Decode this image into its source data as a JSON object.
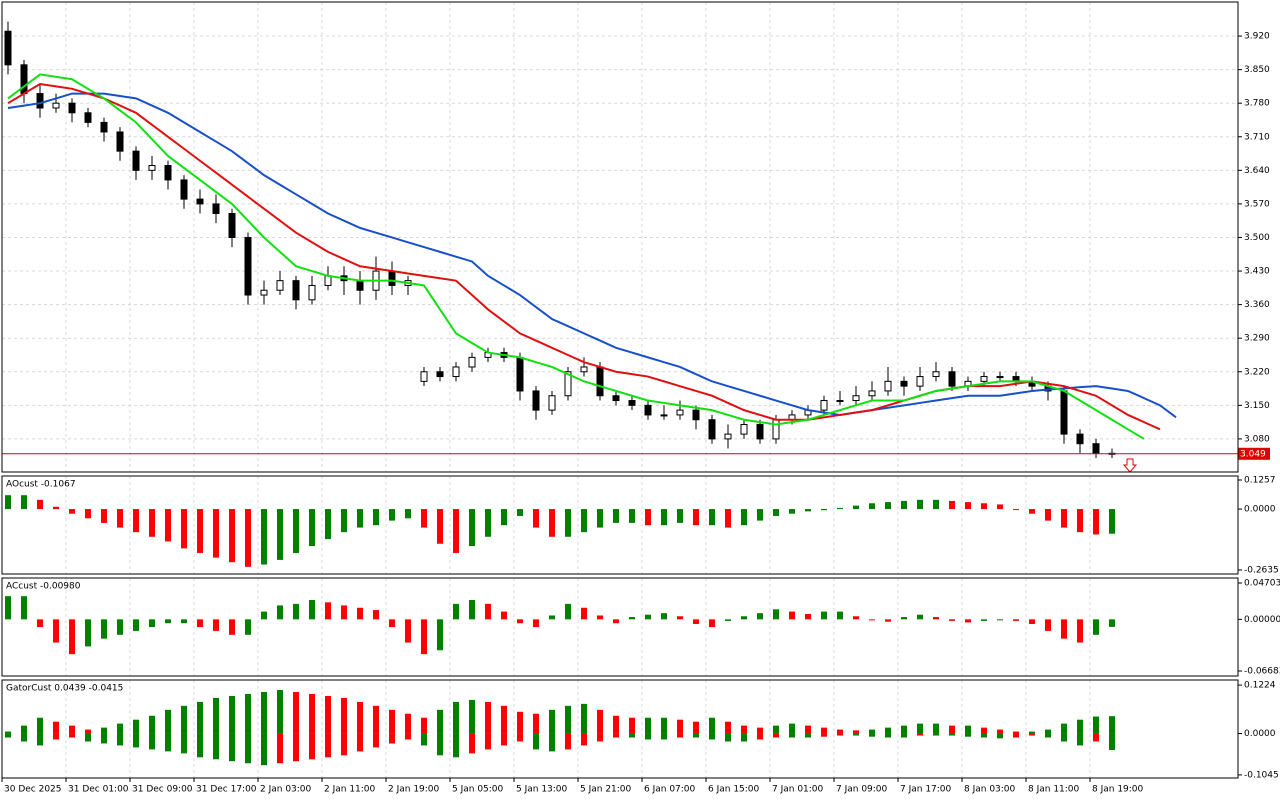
{
  "chart_data": [
    {
      "type": "candlestick",
      "grid": true,
      "up_color": "#ffffff",
      "down_color": "#000000",
      "bid": 3.049,
      "bid_color": "#e00000",
      "open": [
        3.93,
        3.86,
        3.8,
        3.77,
        3.78,
        3.76,
        3.74,
        3.72,
        3.68,
        3.64,
        3.65,
        3.62,
        3.58,
        3.57,
        3.55,
        3.5,
        3.38,
        3.39,
        3.41,
        3.37,
        3.4,
        3.42,
        3.41,
        3.39,
        3.43,
        3.4,
        3.2,
        3.22,
        3.21,
        3.23,
        3.25,
        3.26,
        3.25,
        3.18,
        3.14,
        3.17,
        3.22,
        3.23,
        3.17,
        3.16,
        3.15,
        3.13,
        3.13,
        3.14,
        3.12,
        3.08,
        3.09,
        3.11,
        3.08,
        3.12,
        3.13,
        3.14,
        3.16,
        3.16,
        3.17,
        3.18,
        3.2,
        3.19,
        3.21,
        3.22,
        3.19,
        3.2,
        3.21,
        3.21,
        3.2,
        3.19,
        3.18,
        3.09,
        3.07,
        3.05
      ],
      "high": [
        3.95,
        3.87,
        3.82,
        3.8,
        3.79,
        3.77,
        3.75,
        3.73,
        3.69,
        3.67,
        3.66,
        3.63,
        3.6,
        3.59,
        3.56,
        3.51,
        3.41,
        3.43,
        3.42,
        3.42,
        3.44,
        3.44,
        3.43,
        3.46,
        3.45,
        3.42,
        3.23,
        3.23,
        3.24,
        3.26,
        3.27,
        3.27,
        3.26,
        3.19,
        3.18,
        3.23,
        3.25,
        3.24,
        3.18,
        3.17,
        3.16,
        3.15,
        3.16,
        3.15,
        3.13,
        3.11,
        3.12,
        3.12,
        3.13,
        3.14,
        3.15,
        3.17,
        3.18,
        3.19,
        3.2,
        3.23,
        3.21,
        3.23,
        3.24,
        3.23,
        3.21,
        3.22,
        3.22,
        3.22,
        3.21,
        3.2,
        3.19,
        3.1,
        3.08,
        3.06
      ],
      "low": [
        3.84,
        3.78,
        3.75,
        3.76,
        3.74,
        3.73,
        3.7,
        3.66,
        3.62,
        3.62,
        3.6,
        3.56,
        3.55,
        3.53,
        3.48,
        3.36,
        3.36,
        3.38,
        3.35,
        3.36,
        3.39,
        3.38,
        3.36,
        3.37,
        3.38,
        3.38,
        3.19,
        3.2,
        3.2,
        3.22,
        3.24,
        3.24,
        3.16,
        3.12,
        3.13,
        3.16,
        3.21,
        3.16,
        3.15,
        3.14,
        3.12,
        3.12,
        3.12,
        3.1,
        3.07,
        3.06,
        3.08,
        3.07,
        3.07,
        3.11,
        3.12,
        3.13,
        3.15,
        3.15,
        3.16,
        3.17,
        3.17,
        3.18,
        3.2,
        3.18,
        3.18,
        3.19,
        3.2,
        3.19,
        3.18,
        3.16,
        3.07,
        3.05,
        3.04,
        3.04
      ],
      "close": [
        3.86,
        3.8,
        3.77,
        3.78,
        3.76,
        3.74,
        3.72,
        3.68,
        3.64,
        3.65,
        3.62,
        3.58,
        3.57,
        3.55,
        3.5,
        3.38,
        3.39,
        3.41,
        3.37,
        3.4,
        3.42,
        3.41,
        3.39,
        3.43,
        3.4,
        3.41,
        3.22,
        3.21,
        3.23,
        3.25,
        3.26,
        3.25,
        3.18,
        3.14,
        3.17,
        3.22,
        3.23,
        3.17,
        3.16,
        3.15,
        3.13,
        3.13,
        3.14,
        3.12,
        3.08,
        3.09,
        3.11,
        3.08,
        3.12,
        3.13,
        3.14,
        3.16,
        3.16,
        3.17,
        3.18,
        3.2,
        3.19,
        3.21,
        3.22,
        3.19,
        3.2,
        3.21,
        3.21,
        3.2,
        3.19,
        3.18,
        3.09,
        3.07,
        3.05,
        3.049
      ],
      "series": [
        {
          "color": "#1750c8",
          "values": [
            3.77,
            3.775,
            3.78,
            3.79,
            3.8,
            3.8,
            3.8,
            3.795,
            3.79,
            3.775,
            3.76,
            3.74,
            3.72,
            3.7,
            3.68,
            3.655,
            3.63,
            3.61,
            3.59,
            3.57,
            3.55,
            3.535,
            3.52,
            3.51,
            3.5,
            3.49,
            3.48,
            3.47,
            3.46,
            3.45,
            3.42,
            3.4,
            3.38,
            3.355,
            3.33,
            3.315,
            3.3,
            3.285,
            3.27,
            3.26,
            3.25,
            3.24,
            3.23,
            3.215,
            3.2,
            3.19,
            3.18,
            3.17,
            3.16,
            3.15,
            3.14,
            3.135,
            3.13,
            3.135,
            3.14,
            3.145,
            3.15,
            3.155,
            3.16,
            3.165,
            3.17,
            3.17,
            3.17,
            3.175,
            3.18,
            3.183,
            3.185,
            3.188,
            3.19,
            3.185,
            3.18,
            3.165,
            3.15,
            3.125
          ]
        },
        {
          "color": "#e01010",
          "values": [
            3.78,
            3.8,
            3.82,
            3.815,
            3.81,
            3.8,
            3.79,
            3.775,
            3.76,
            3.735,
            3.71,
            3.685,
            3.66,
            3.635,
            3.61,
            3.585,
            3.56,
            3.535,
            3.51,
            3.49,
            3.47,
            3.455,
            3.44,
            3.435,
            3.43,
            3.425,
            3.42,
            3.415,
            3.41,
            3.38,
            3.35,
            3.325,
            3.3,
            3.285,
            3.27,
            3.255,
            3.24,
            3.23,
            3.22,
            3.215,
            3.21,
            3.2,
            3.19,
            3.18,
            3.17,
            3.155,
            3.14,
            3.13,
            3.12,
            3.12,
            3.12,
            3.125,
            3.13,
            3.135,
            3.14,
            3.15,
            3.16,
            3.17,
            3.18,
            3.185,
            3.19,
            3.19,
            3.19,
            3.195,
            3.2,
            3.195,
            3.19,
            3.18,
            3.17,
            3.15,
            3.13,
            3.115,
            3.1
          ]
        },
        {
          "color": "#10e010",
          "values": [
            3.79,
            3.815,
            3.84,
            3.835,
            3.83,
            3.81,
            3.79,
            3.765,
            3.74,
            3.705,
            3.67,
            3.645,
            3.62,
            3.595,
            3.57,
            3.535,
            3.5,
            3.47,
            3.44,
            3.43,
            3.42,
            3.415,
            3.41,
            3.41,
            3.41,
            3.405,
            3.4,
            3.35,
            3.3,
            3.28,
            3.26,
            3.255,
            3.25,
            3.24,
            3.23,
            3.215,
            3.2,
            3.19,
            3.18,
            3.17,
            3.16,
            3.155,
            3.15,
            3.145,
            3.14,
            3.13,
            3.12,
            3.115,
            3.11,
            3.115,
            3.12,
            3.13,
            3.14,
            3.15,
            3.16,
            3.16,
            3.16,
            3.17,
            3.18,
            3.185,
            3.19,
            3.195,
            3.2,
            3.2,
            3.2,
            3.19,
            3.18,
            3.16,
            3.14,
            3.12,
            3.1,
            3.08
          ]
        }
      ],
      "ylim": [
        3.011,
        3.991
      ],
      "yticks": [
        {
          "value": 3.92,
          "label": "3.920"
        },
        {
          "value": 3.85,
          "label": "3.850"
        },
        {
          "value": 3.78,
          "label": "3.780"
        },
        {
          "value": 3.71,
          "label": "3.710"
        },
        {
          "value": 3.64,
          "label": "3.640"
        },
        {
          "value": 3.57,
          "label": "3.570"
        },
        {
          "value": 3.5,
          "label": "3.500"
        },
        {
          "value": 3.43,
          "label": "3.430"
        },
        {
          "value": 3.36,
          "label": "3.360"
        },
        {
          "value": 3.29,
          "label": "3.290"
        },
        {
          "value": 3.22,
          "label": "3.220"
        },
        {
          "value": 3.15,
          "label": "3.150"
        },
        {
          "value": 3.08,
          "label": "3.080"
        }
      ]
    },
    {
      "type": "histogram",
      "title": "AOcust -0.1067",
      "up_color": "#008000",
      "down_color": "#ff0000",
      "values": [
        0.06,
        0.06,
        0.04,
        0.01,
        -0.02,
        -0.04,
        -0.06,
        -0.08,
        -0.1,
        -0.12,
        -0.14,
        -0.17,
        -0.19,
        -0.21,
        -0.23,
        -0.25,
        -0.24,
        -0.22,
        -0.19,
        -0.16,
        -0.13,
        -0.1,
        -0.08,
        -0.07,
        -0.05,
        -0.04,
        -0.08,
        -0.15,
        -0.19,
        -0.16,
        -0.12,
        -0.07,
        -0.03,
        -0.08,
        -0.12,
        -0.12,
        -0.1,
        -0.08,
        -0.06,
        -0.06,
        -0.07,
        -0.07,
        -0.06,
        -0.07,
        -0.07,
        -0.08,
        -0.07,
        -0.05,
        -0.03,
        -0.02,
        -0.01,
        -0.005,
        0.005,
        0.015,
        0.025,
        0.03,
        0.035,
        0.04,
        0.04,
        0.035,
        0.03,
        0.025,
        0.02,
        0.0,
        -0.02,
        -0.05,
        -0.08,
        -0.1,
        -0.11,
        -0.1067
      ],
      "ylim": [
        -0.281,
        0.143
      ],
      "yticks": [
        0.1257,
        {
          "value": 0,
          "label": "0.0000"
        },
        -0.2635
      ]
    },
    {
      "type": "histogram",
      "title": "ACcust -0.00980",
      "up_color": "#008000",
      "down_color": "#ff0000",
      "values": [
        0.03,
        0.03,
        -0.01,
        -0.03,
        -0.045,
        -0.035,
        -0.025,
        -0.02,
        -0.015,
        -0.01,
        -0.005,
        -0.005,
        -0.01,
        -0.015,
        -0.02,
        -0.02,
        0.01,
        0.018,
        0.02,
        0.025,
        0.022,
        0.018,
        0.015,
        0.012,
        -0.01,
        -0.03,
        -0.045,
        -0.04,
        0.02,
        0.025,
        0.02,
        0.01,
        -0.005,
        -0.01,
        0.005,
        0.02,
        0.015,
        0.005,
        -0.005,
        0.003,
        0.006,
        0.008,
        0.004,
        -0.006,
        -0.01,
        -0.002,
        0.004,
        0.008,
        0.013,
        0.01,
        0.007,
        0.01,
        0.01,
        0.004,
        0.0,
        -0.003,
        0.003,
        0.006,
        0.003,
        -0.002,
        -0.004,
        -0.002,
        0.0,
        -0.002,
        -0.006,
        -0.015,
        -0.025,
        -0.03,
        -0.02,
        -0.0098
      ],
      "ylim": [
        -0.0733,
        0.0535
      ],
      "yticks": [
        0.04703,
        {
          "value": 0,
          "label": "0.00000"
        },
        -0.06683
      ]
    },
    {
      "type": "gator",
      "title": "GatorCust 0.0439 -0.0415",
      "up_color": "#008000",
      "down_color": "#ff0000",
      "series": [
        {
          "values": [
            0.005,
            0.02,
            0.04,
            0.03,
            0.02,
            0.01,
            0.015,
            0.025,
            0.035,
            0.045,
            0.06,
            0.07,
            0.08,
            0.09,
            0.095,
            0.1,
            0.105,
            0.11,
            0.105,
            0.1,
            0.095,
            0.09,
            0.08,
            0.07,
            0.06,
            0.05,
            0.04,
            0.06,
            0.08,
            0.085,
            0.08,
            0.07,
            0.055,
            0.05,
            0.06,
            0.07,
            0.075,
            0.06,
            0.045,
            0.04,
            0.04,
            0.04,
            0.035,
            0.03,
            0.04,
            0.03,
            0.02,
            0.015,
            0.02,
            0.025,
            0.02,
            0.015,
            0.01,
            0.008,
            0.01,
            0.015,
            0.02,
            0.025,
            0.025,
            0.02,
            0.02,
            0.015,
            0.01,
            0.005,
            0.005,
            0.01,
            0.025,
            0.035,
            0.043,
            0.0439
          ]
        },
        {
          "values": [
            -0.01,
            -0.02,
            -0.03,
            -0.015,
            -0.01,
            -0.02,
            -0.025,
            -0.03,
            -0.035,
            -0.04,
            -0.045,
            -0.05,
            -0.06,
            -0.065,
            -0.07,
            -0.075,
            -0.08,
            -0.075,
            -0.07,
            -0.065,
            -0.06,
            -0.055,
            -0.045,
            -0.035,
            -0.025,
            -0.015,
            -0.03,
            -0.055,
            -0.06,
            -0.05,
            -0.04,
            -0.03,
            -0.02,
            -0.04,
            -0.045,
            -0.04,
            -0.03,
            -0.02,
            -0.01,
            -0.01,
            -0.015,
            -0.015,
            -0.01,
            -0.01,
            -0.015,
            -0.02,
            -0.02,
            -0.015,
            -0.01,
            -0.01,
            -0.01,
            -0.008,
            -0.005,
            -0.005,
            -0.008,
            -0.01,
            -0.01,
            -0.005,
            -0.005,
            -0.005,
            -0.008,
            -0.01,
            -0.012,
            -0.01,
            -0.005,
            -0.01,
            -0.02,
            -0.03,
            -0.02,
            -0.0415
          ]
        }
      ],
      "ylim": [
        -0.1123,
        0.1353
      ],
      "yticks": [
        0.1224,
        {
          "value": 0,
          "label": "0.0000"
        },
        -0.1045
      ],
      "time_labels": [
        "30 Dec 2025",
        "31 Dec 01:00",
        "31 Dec 09:00",
        "31 Dec 17:00",
        "2 Jan 03:00",
        "2 Jan 11:00",
        "2 Jan 19:00",
        "5 Jan 05:00",
        "5 Jan 13:00",
        "5 Jan 21:00",
        "6 Jan 07:00",
        "6 Jan 15:00",
        "7 Jan 01:00",
        "7 Jan 09:00",
        "7 Jan 17:00",
        "8 Jan 03:00",
        "8 Jan 11:00",
        "8 Jan 19:00"
      ]
    }
  ]
}
